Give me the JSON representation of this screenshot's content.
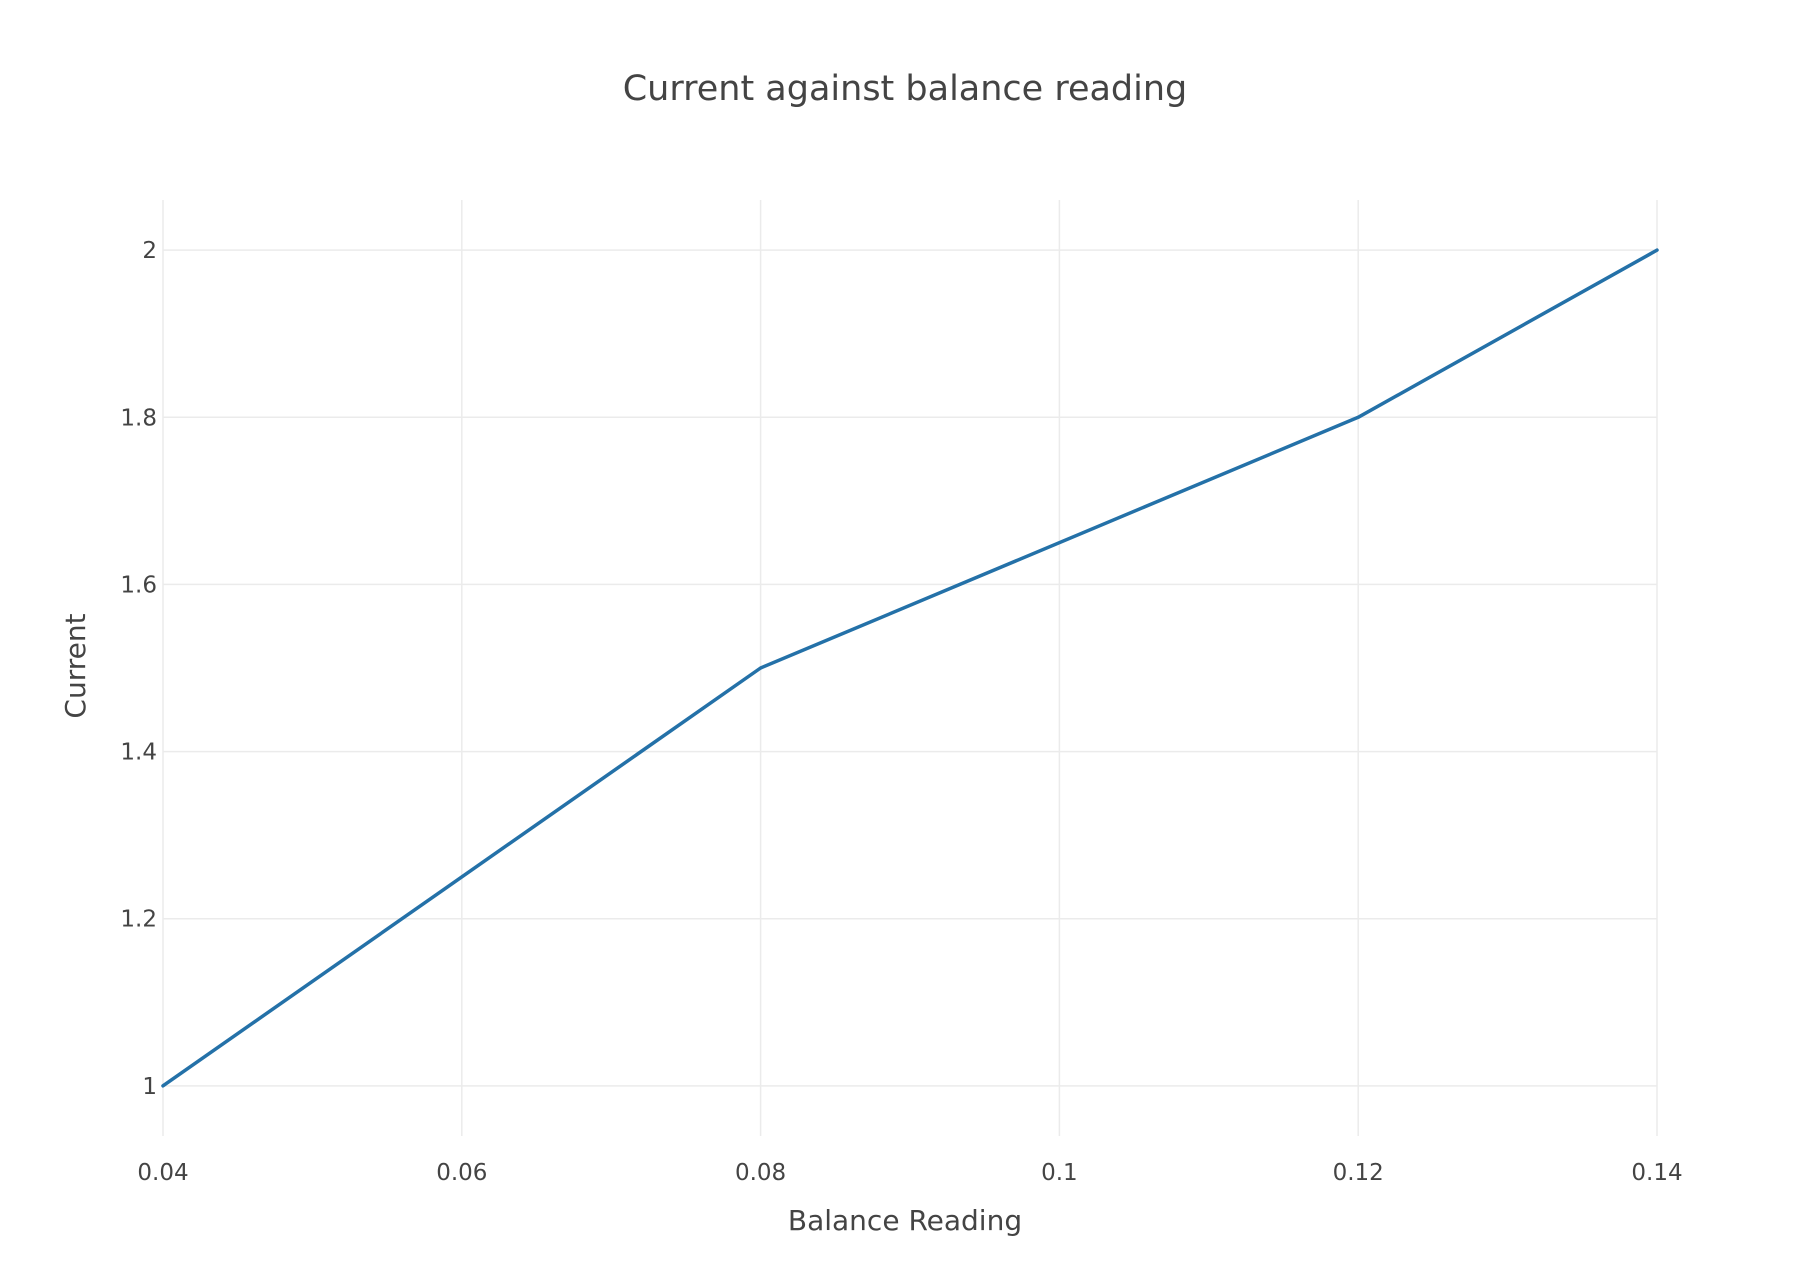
{
  "chart_data": {
    "type": "line",
    "title": "Current against balance reading",
    "xlabel": "Balance Reading",
    "ylabel": "Current",
    "x": [
      0.04,
      0.08,
      0.12,
      0.14
    ],
    "series": [
      {
        "values": [
          1.0,
          1.5,
          1.8,
          2.0
        ],
        "color": "#2471a8"
      }
    ],
    "xlim": [
      0.04,
      0.14
    ],
    "ylim": [
      0.94,
      2.06
    ],
    "xticks": [
      0.04,
      0.06,
      0.08,
      0.1,
      0.12,
      0.14
    ],
    "xtick_labels": [
      "0.04",
      "0.06",
      "0.08",
      "0.1",
      "0.12",
      "0.14"
    ],
    "yticks": [
      1,
      1.2,
      1.4,
      1.6,
      1.8,
      2
    ],
    "ytick_labels": [
      "1",
      "1.2",
      "1.4",
      "1.6",
      "1.8",
      "2"
    ],
    "grid": true,
    "legend": "none",
    "gridline_color": "#ebebeb"
  }
}
